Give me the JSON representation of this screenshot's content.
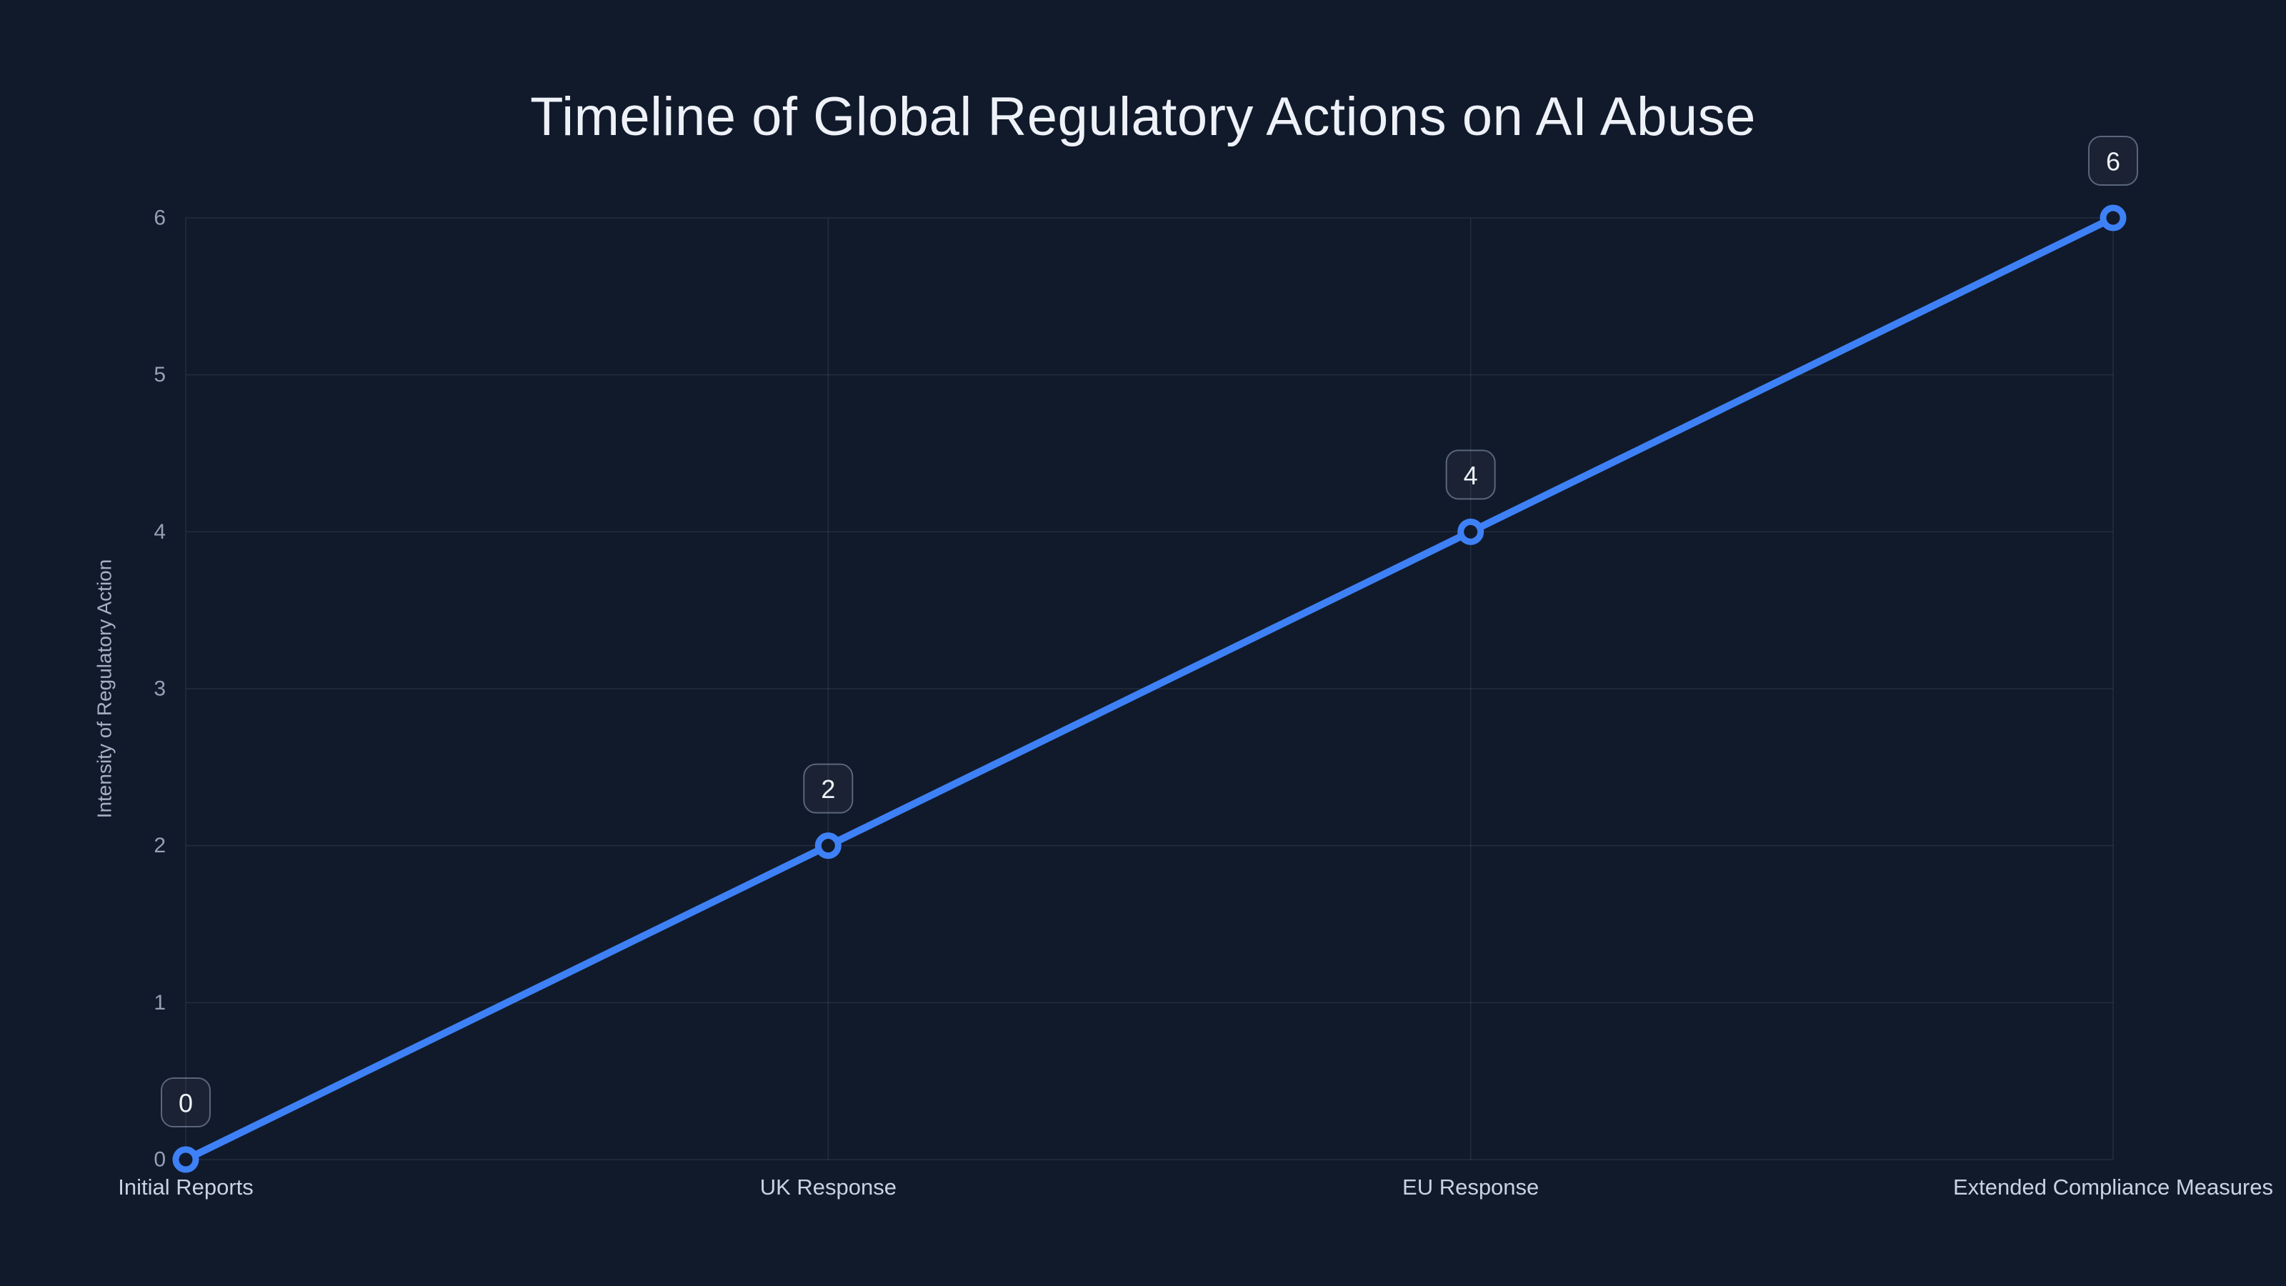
{
  "page": {
    "background": "#111a2b"
  },
  "chart_data": {
    "type": "line",
    "title": "Timeline of Global Regulatory Actions on AI Abuse",
    "xlabel": "",
    "ylabel": "Intensity of Regulatory Action",
    "categories": [
      "Initial Reports",
      "UK Response",
      "EU Response",
      "Extended Compliance Measures"
    ],
    "values": [
      0,
      2,
      4,
      6
    ],
    "point_labels": [
      "0",
      "2",
      "4",
      "6"
    ],
    "yticks": [
      0,
      1,
      2,
      3,
      4,
      5,
      6
    ],
    "ylim": [
      0,
      6
    ],
    "grid": true,
    "legend_position": "none",
    "colors": {
      "background": "#111a2b",
      "line": "#3e81f6",
      "marker_stroke": "#3e81f6",
      "marker_fill": "#111a2b",
      "grid": "rgba(148,163,184,0.14)",
      "title": "#eef2f8",
      "x_tick_label": "#c9d2e0",
      "y_tick_label": "#96a1b5",
      "axis_title": "#a6b0c3",
      "label_box_border": "rgba(148,163,184,0.55)",
      "label_box_fill": "rgba(255,255,255,0.04)",
      "label_text": "#eef2f8"
    }
  }
}
